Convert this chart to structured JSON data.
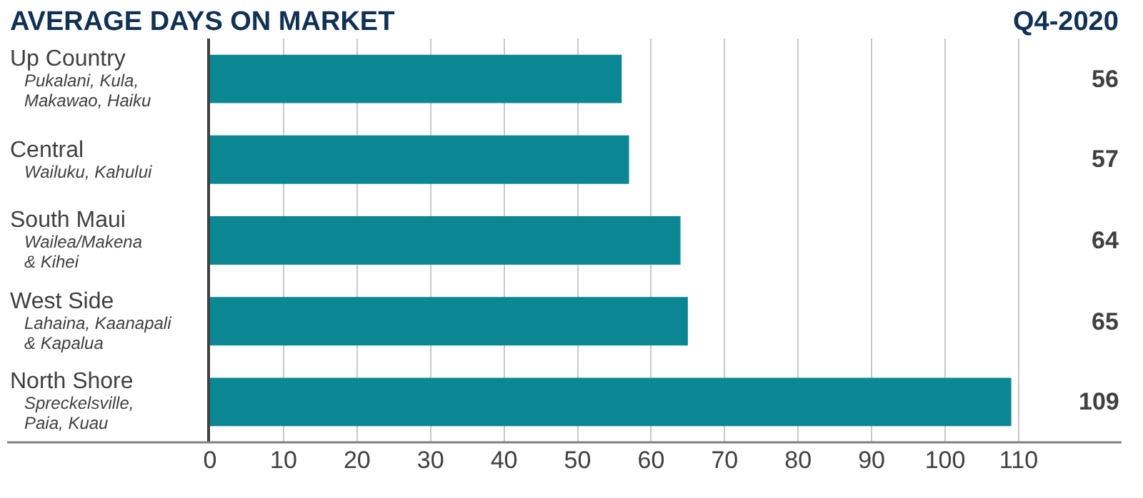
{
  "chart_data": {
    "type": "bar",
    "orientation": "horizontal",
    "title": "AVERAGE DAYS ON MARKET",
    "subtitle": "Q4-2020",
    "categories": [
      "Up Country\nPukalani, Kula,\nMakawao, Haiku",
      "Central\nWailuku, Kahului",
      "South Maui\nWailea/Makena\n& Kihei",
      "West Side\nLahaina, Kaanapali\n& Kapalua",
      "North Shore\nSpreckelsville,\nPaia, Kuau"
    ],
    "values": [
      56,
      57,
      64,
      65,
      109
    ],
    "color": "#0b8794",
    "xlim": [
      0,
      124
    ],
    "xticks": [
      0,
      10,
      20,
      30,
      40,
      50,
      60,
      70,
      80,
      90,
      100,
      110
    ],
    "grid": "x",
    "data_labels": true,
    "legend": false
  }
}
